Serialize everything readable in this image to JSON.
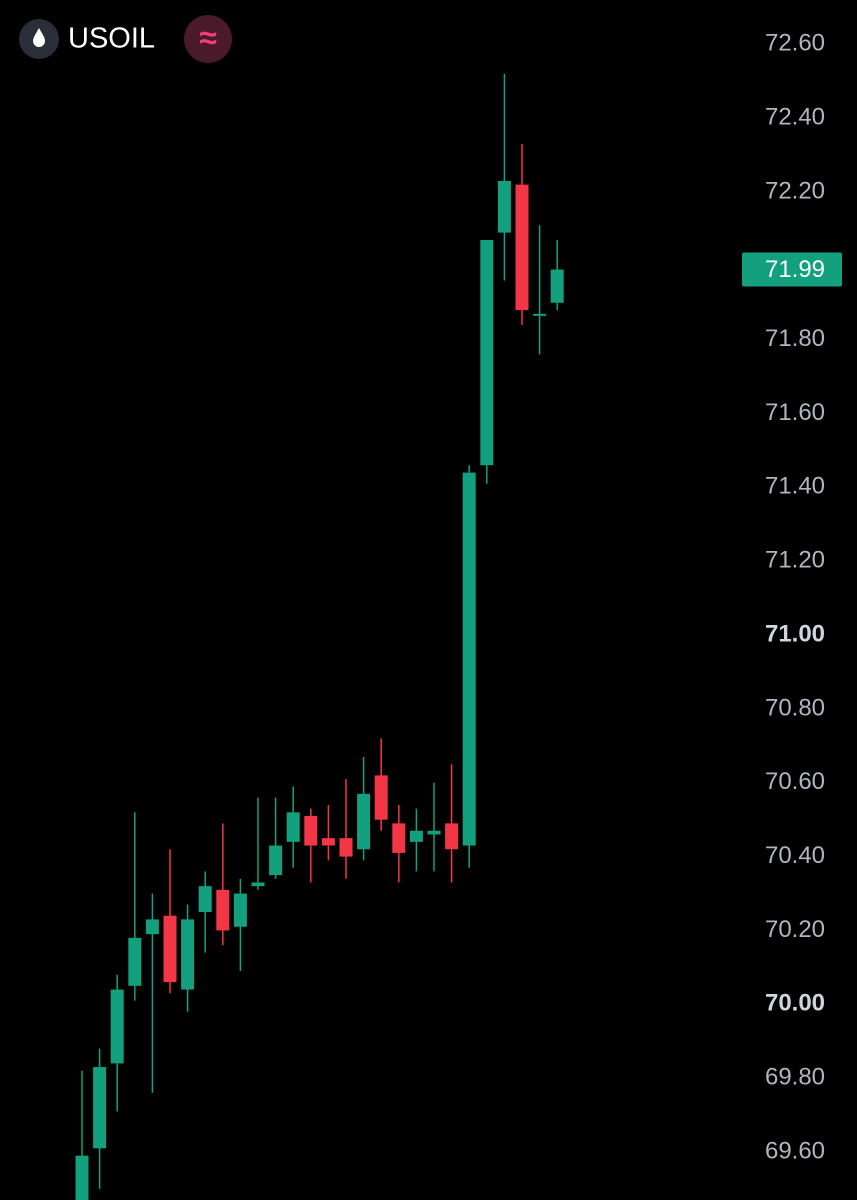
{
  "chart_data": {
    "type": "candlestick",
    "title": "USOIL",
    "up_color": "#12a07f",
    "down_color": "#f23645",
    "last_price": 71.99,
    "ylim": [
      69.47,
      72.72
    ],
    "yticks": [
      {
        "value": 69.6,
        "label": "69.60"
      },
      {
        "value": 69.8,
        "label": "69.80"
      },
      {
        "value": 70,
        "label": "70.00"
      },
      {
        "value": 70.2,
        "label": "70.20"
      },
      {
        "value": 70.4,
        "label": "70.40"
      },
      {
        "value": 70.6,
        "label": "70.60"
      },
      {
        "value": 70.8,
        "label": "70.80"
      },
      {
        "value": 71,
        "label": "71.00"
      },
      {
        "value": 71.2,
        "label": "71.20"
      },
      {
        "value": 71.4,
        "label": "71.40"
      },
      {
        "value": 71.6,
        "label": "71.60"
      },
      {
        "value": 71.8,
        "label": "71.80"
      },
      {
        "value": 72,
        "label": "72.00"
      },
      {
        "value": 72.2,
        "label": "72.20"
      },
      {
        "value": 72.4,
        "label": "72.40"
      },
      {
        "value": 72.6,
        "label": "72.60"
      }
    ],
    "open": [
      69.44,
      69.61,
      69.84,
      70.05,
      70.19,
      70.24,
      70.04,
      70.25,
      70.31,
      70.21,
      70.32,
      70.35,
      70.44,
      70.51,
      70.45,
      70.45,
      70.42,
      70.62,
      70.49,
      70.44,
      70.46,
      70.49,
      70.43,
      71.46,
      72.09,
      72.22,
      71.87,
      71.9
    ],
    "high": [
      69.82,
      69.88,
      70.08,
      70.52,
      70.3,
      70.42,
      70.27,
      70.36,
      70.49,
      70.34,
      70.56,
      70.56,
      70.59,
      70.53,
      70.54,
      70.61,
      70.67,
      70.72,
      70.54,
      70.53,
      70.6,
      70.65,
      71.46,
      72.07,
      72.52,
      72.33,
      72.11,
      72.07
    ],
    "low": [
      69.4,
      69.5,
      69.71,
      70.01,
      69.76,
      70.03,
      69.98,
      70.14,
      70.16,
      70.09,
      70.31,
      70.34,
      70.37,
      70.33,
      70.39,
      70.34,
      70.39,
      70.47,
      70.33,
      70.36,
      70.36,
      70.33,
      70.37,
      71.41,
      71.96,
      71.84,
      71.76,
      71.88
    ],
    "close": [
      69.59,
      69.83,
      70.04,
      70.18,
      70.23,
      70.06,
      70.23,
      70.32,
      70.2,
      70.3,
      70.33,
      70.43,
      70.52,
      70.43,
      70.43,
      70.4,
      70.57,
      70.5,
      70.41,
      70.47,
      70.47,
      70.42,
      71.44,
      72.07,
      72.23,
      71.88,
      71.87,
      71.99
    ]
  }
}
